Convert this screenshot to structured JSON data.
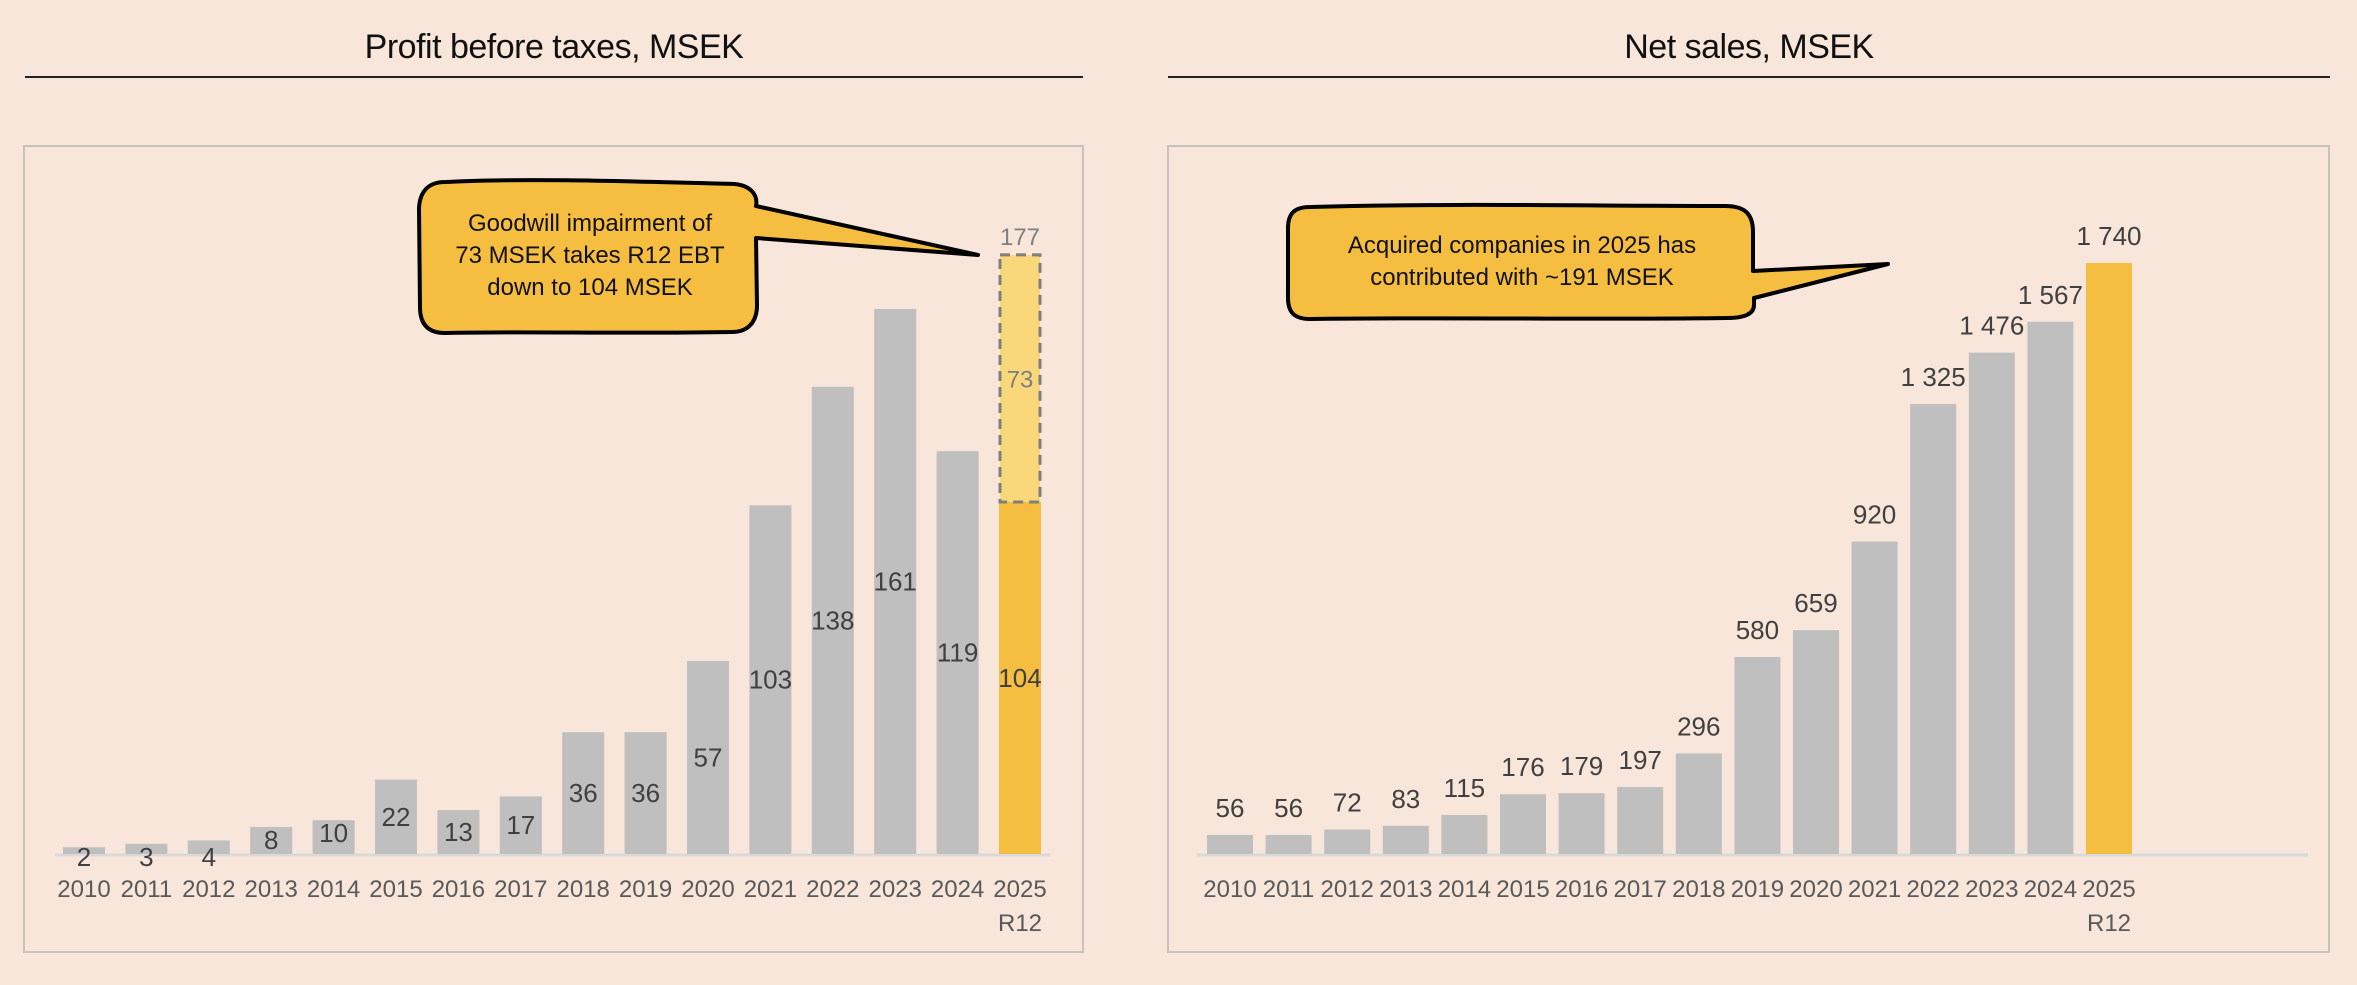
{
  "colors": {
    "background": "#f8e6da",
    "bar_gray": "#bfbfbf",
    "highlight": "#f5be41",
    "impairment_fill": "#fad77a",
    "callout_fill": "#f5be41",
    "label_text": "#404040",
    "axis_line": "#d9d9d9"
  },
  "chart_data": [
    {
      "type": "bar",
      "title": "Profit before taxes, MSEK",
      "xlabel": "",
      "ylabel": "",
      "categories": [
        "2010",
        "2011",
        "2012",
        "2013",
        "2014",
        "2015",
        "2016",
        "2017",
        "2018",
        "2019",
        "2020",
        "2021",
        "2022",
        "2023",
        "2024",
        "2025 R12"
      ],
      "series": [
        {
          "name": "Profit before taxes",
          "values": [
            2,
            3,
            4,
            8,
            10,
            22,
            13,
            17,
            36,
            36,
            57,
            103,
            138,
            161,
            119,
            104
          ]
        },
        {
          "name": "Goodwill impairment",
          "values": [
            0,
            0,
            0,
            0,
            0,
            0,
            0,
            0,
            0,
            0,
            0,
            0,
            0,
            0,
            0,
            73
          ],
          "stacked": true,
          "style": "dashed"
        }
      ],
      "data_labels": [
        "2",
        "3",
        "4",
        "8",
        "10",
        "22",
        "13",
        "17",
        "36",
        "36",
        "57",
        "103",
        "138",
        "161",
        "119",
        "104"
      ],
      "impairment_label": "73",
      "total_label": "177",
      "highlight_category": "2025 R12",
      "ylim": [
        0,
        180
      ],
      "grid": false,
      "legend": "none",
      "annotation": {
        "lines": [
          "Goodwill impairment of",
          "73 MSEK takes R12 EBT",
          "down to 104 MSEK"
        ],
        "points_to": "2025 R12"
      }
    },
    {
      "type": "bar",
      "title": "Net sales, MSEK",
      "xlabel": "",
      "ylabel": "",
      "categories": [
        "2010",
        "2011",
        "2012",
        "2013",
        "2014",
        "2015",
        "2016",
        "2017",
        "2018",
        "2019",
        "2020",
        "2021",
        "2022",
        "2023",
        "2024",
        "2025 R12"
      ],
      "series": [
        {
          "name": "Net sales",
          "values": [
            56,
            56,
            72,
            83,
            115,
            176,
            179,
            197,
            296,
            580,
            659,
            920,
            1325,
            1476,
            1567,
            1740
          ]
        }
      ],
      "data_labels": [
        "56",
        "56",
        "72",
        "83",
        "115",
        "176",
        "179",
        "197",
        "296",
        "580",
        "659",
        "920",
        "1 325",
        "1 476",
        "1 567",
        "1 740"
      ],
      "highlight_category": "2025 R12",
      "ylim": [
        0,
        1800
      ],
      "grid": false,
      "legend": "none",
      "annotation": {
        "lines": [
          "Acquired companies in 2025 has",
          "contributed with ~191 MSEK"
        ],
        "points_to": "2025 R12"
      }
    }
  ]
}
